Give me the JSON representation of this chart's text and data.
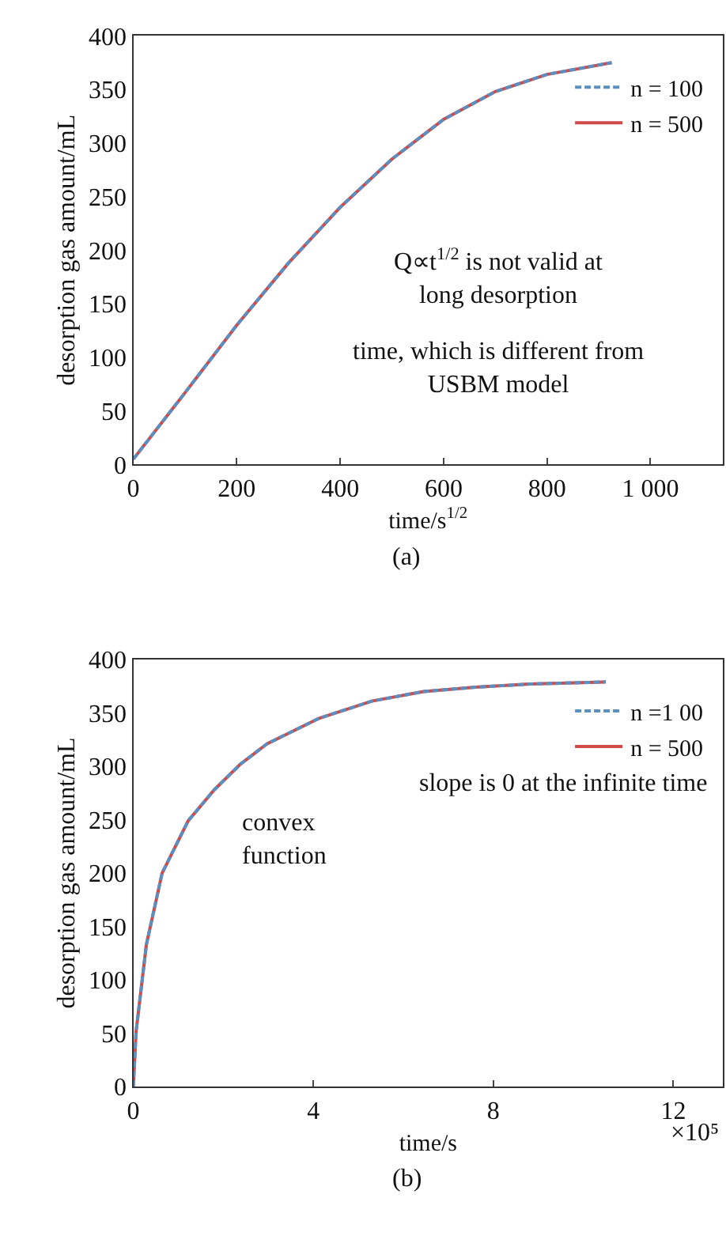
{
  "chart_data": [
    {
      "type": "line",
      "xlabel": "time/s$^{1/2}$",
      "ylabel": "desorption gas amount/mL",
      "xlim": [
        0,
        1140
      ],
      "xticks": [
        0,
        200,
        400,
        600,
        800,
        {
          "value": 1000,
          "label": "1 000"
        }
      ],
      "ylim": [
        0,
        400
      ],
      "yticks": [
        0,
        50,
        100,
        150,
        200,
        250,
        300,
        350,
        400
      ],
      "legend": "top right",
      "x": [
        0,
        100,
        200,
        300,
        400,
        500,
        600,
        700,
        800,
        925
      ],
      "series": [
        {
          "name": "n = 500",
          "color": "#d04a4a",
          "line_style": "solid",
          "values": [
            5,
            67,
            130,
            188,
            240,
            285,
            322,
            348,
            364,
            375
          ]
        },
        {
          "name": "n = 100",
          "color": "#5b8fc0",
          "line_style": "dashed",
          "values": [
            5,
            67,
            130,
            188,
            240,
            285,
            322,
            348,
            364,
            375
          ]
        }
      ],
      "annotations": [
        "Q∝t$^{1/2}$ is not valid at\nlong desorption",
        "time, which is different from\nUSBM model",
        "(a)"
      ]
    },
    {
      "type": "line",
      "xlabel": "time/s",
      "ylabel": "desorption gas amount/mL",
      "xlim": [
        0,
        13.1
      ],
      "xticks": [
        0,
        4,
        8,
        12
      ],
      "ylim": [
        0,
        400
      ],
      "yticks": [
        0,
        50,
        100,
        150,
        200,
        250,
        300,
        350,
        400
      ],
      "legend": "top right",
      "x": [
        0,
        0.06,
        0.29,
        0.64,
        1.22,
        1.8,
        2.38,
        2.97,
        4.13,
        5.3,
        6.45,
        7.6,
        8.8,
        10.5
      ],
      "series": [
        {
          "name": "n = 500",
          "color": "#d04a4a",
          "line_style": "solid",
          "values": [
            0,
            51,
            133,
            200,
            249,
            278,
            302,
            321,
            345,
            361,
            370,
            374,
            377,
            379
          ]
        },
        {
          "name": "n =1 00",
          "color": "#5b8fc0",
          "line_style": "dashed",
          "values": [
            0,
            51,
            133,
            200,
            249,
            278,
            302,
            321,
            345,
            361,
            370,
            374,
            377,
            379
          ]
        }
      ],
      "annotations": [
        "slope is 0 at the infinite time",
        "convex\nfunction",
        "×10⁵",
        "(b)"
      ]
    }
  ]
}
